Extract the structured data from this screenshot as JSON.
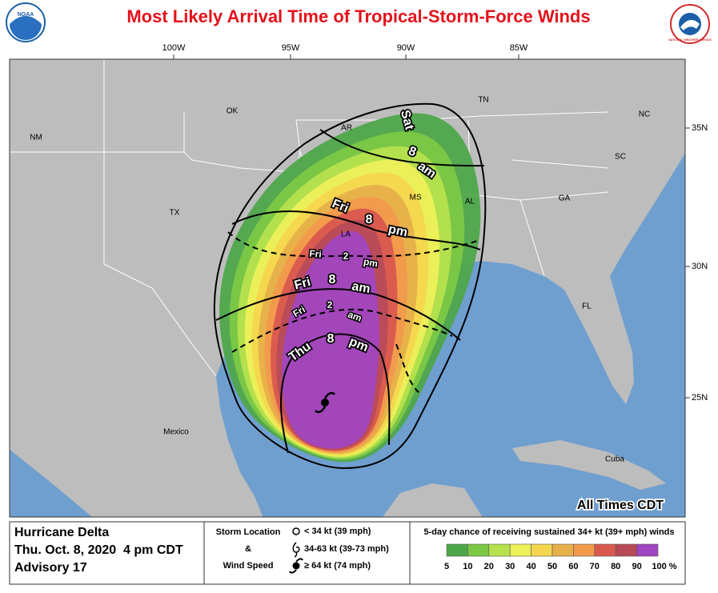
{
  "header": {
    "title": "Most Likely Arrival Time of Tropical-Storm-Force Winds",
    "logos": [
      "NOAA",
      "NATIONAL WEATHER SERVICE"
    ]
  },
  "map": {
    "longitude_labels": [
      "100W",
      "95W",
      "90W",
      "85W"
    ],
    "latitude_labels": [
      "35N",
      "30N",
      "25N"
    ],
    "places": [
      "NM",
      "OK",
      "AR",
      "TN",
      "NC",
      "SC",
      "GA",
      "AL",
      "MS",
      "LA",
      "TX",
      "FL",
      "Mexico",
      "Cuba"
    ],
    "arrival_times": [
      [
        "Sat",
        "8",
        "am"
      ],
      [
        "Fri",
        "8",
        "pm"
      ],
      [
        "Fri",
        "2",
        "pm"
      ],
      [
        "Fri",
        "8",
        "am"
      ],
      [
        "Fri",
        "2",
        "am"
      ],
      [
        "Thu",
        "8",
        "pm"
      ]
    ],
    "time_zone_note": "All Times CDT"
  },
  "info": {
    "storm": "Hurricane Delta",
    "issued": "Thu. Oct. 8, 2020  4 pm CDT",
    "advisory": "Advisory 17"
  },
  "storm_key": {
    "title_lines": [
      "Storm Location",
      "&",
      "Wind Speed"
    ],
    "items": [
      "< 34 kt (39 mph)",
      "34-63 kt (39-73 mph)",
      "≥ 64 kt (74 mph)"
    ]
  },
  "probability_legend": {
    "title": "5-day chance of receiving sustained 34+ kt (39+ mph) winds",
    "labels": [
      "5",
      "10",
      "20",
      "30",
      "40",
      "50",
      "60",
      "70",
      "80",
      "90",
      "100 %"
    ],
    "colors": [
      "#4ea64a",
      "#7cc846",
      "#b6e24e",
      "#eef05a",
      "#f5d64e",
      "#e6b04a",
      "#f29a4c",
      "#d9594e",
      "#b84a58",
      "#a046c0"
    ]
  }
}
